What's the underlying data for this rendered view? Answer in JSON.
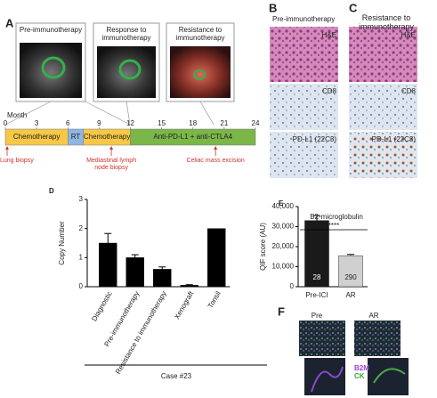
{
  "panel_a": {
    "letter": "A",
    "images": [
      "Pre-immunotherapy",
      "Response to immunotherapy",
      "Resistance to immunotherapy"
    ],
    "timeline": {
      "axis_label": "Month",
      "xlim": [
        0,
        24
      ],
      "xticks": [
        0,
        3,
        6,
        9,
        12,
        15,
        18,
        21,
        24
      ],
      "segments": [
        {
          "label": "Chemotherapy",
          "start": 0,
          "end": 6,
          "color": "#f6c845"
        },
        {
          "label": "RT",
          "start": 6,
          "end": 7.5,
          "color": "#8fb6e2"
        },
        {
          "label": "Chemotherapy",
          "start": 7.5,
          "end": 12,
          "color": "#f6c845"
        },
        {
          "label": "Anti-PD-L1 + anti-CTLA4",
          "start": 12,
          "end": 24,
          "color": "#7ab648"
        }
      ],
      "events": [
        {
          "label": "Lung biopsy",
          "month": 0
        },
        {
          "label": "Mediastinal lymph node biopsy",
          "month": 10
        },
        {
          "label": "Celiac mass excision",
          "month": 20
        }
      ]
    }
  },
  "panel_b": {
    "letter": "B",
    "title": "Pre-immunotherapy",
    "stains": [
      "H&E",
      "CD8",
      "PD-L1 (22C3)"
    ]
  },
  "panel_c": {
    "letter": "C",
    "title": "Resistance to immunotherapy",
    "stains": [
      "H&E",
      "CD8",
      "PD-L1 (22C3)"
    ]
  },
  "panel_f": {
    "letter": "F",
    "columns": [
      "Pre",
      "AR"
    ],
    "channels": [
      {
        "label": "B2M",
        "color": "#9b3fd0"
      },
      {
        "label": "CK",
        "color": "#3aa535"
      }
    ]
  },
  "chart_data": [
    {
      "type": "bar",
      "letter": "D",
      "ylabel": "Copy Number",
      "group_label": "Case #23",
      "categories": [
        "Diagnostic",
        "Pre-immunotherapy",
        "Resistance to immunotherapy",
        "Xenograft",
        "Tonsil"
      ],
      "values": [
        1.5,
        1.0,
        0.6,
        0.05,
        2.0
      ],
      "errors": [
        0.33,
        0.1,
        0.08,
        0.02,
        null
      ],
      "color": "#000000",
      "ylim": [
        0,
        3
      ],
      "yticks": [
        0,
        1,
        2,
        3
      ]
    },
    {
      "type": "bar",
      "letter": "E",
      "title": "B2-microglobulin",
      "ylabel": "QIF score (AU)",
      "significance": "****",
      "categories": [
        "Pre-ICI",
        "AR"
      ],
      "values": [
        33000,
        15500
      ],
      "errors": [
        2500,
        600
      ],
      "n_labels": [
        "28",
        "290"
      ],
      "colors": [
        "#1a1a1a",
        "#d0d0d0"
      ],
      "ylim": [
        0,
        40000
      ],
      "yticks": [
        0,
        {
          "value": 10000,
          "label": "10,000"
        },
        {
          "value": 20000,
          "label": "20,000"
        },
        {
          "value": 30000,
          "label": "30,000"
        },
        {
          "value": 40000,
          "label": "40,000"
        }
      ]
    }
  ]
}
